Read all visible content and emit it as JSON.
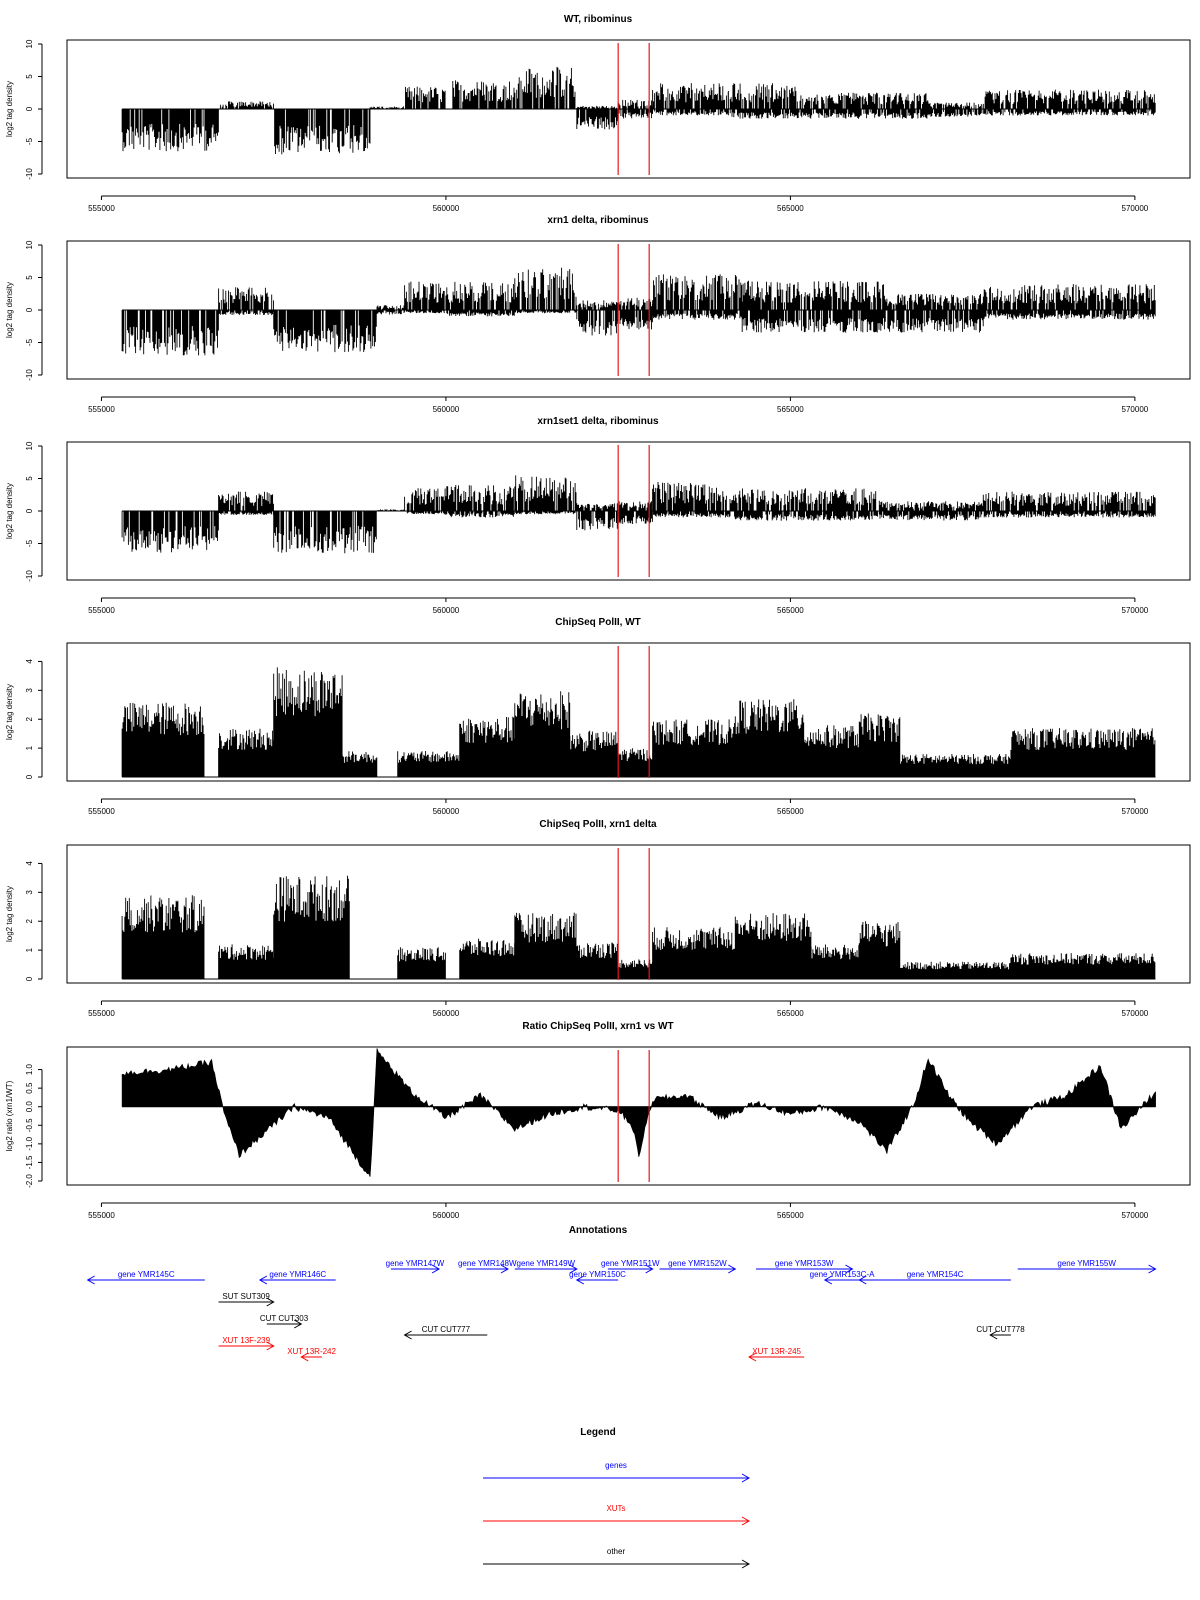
{
  "chart_data": [
    {
      "type": "bar",
      "title": "WT, ribominus",
      "ylabel": "log2 tag density",
      "xlim": [
        554500,
        570800
      ],
      "ylim": [
        -10,
        10
      ],
      "xticks": [
        "555000",
        "560000",
        "565000",
        "570000"
      ],
      "xtick_values": [
        555000,
        560000,
        565000,
        570000
      ],
      "yticks": [
        "-10",
        "-5",
        "0",
        "5",
        "10"
      ],
      "ytick_values": [
        -10,
        -5,
        0,
        5,
        10
      ],
      "marker_positions": [
        562500,
        562950
      ],
      "marker_color": "#e31a1c",
      "series": [
        {
          "x": [
            555300,
            556700
          ],
          "values": [
            -6.5,
            -6.5
          ]
        },
        {
          "x": [
            557500,
            558900
          ],
          "values": [
            -7.0,
            -7.0
          ]
        },
        {
          "x": [
            556800,
            557500
          ],
          "values": [
            0.5,
            0.5
          ]
        },
        {
          "x": [
            559400,
            560000
          ],
          "values": [
            3.5,
            3.5
          ]
        },
        {
          "x": [
            560100,
            561900
          ],
          "values": [
            5.0,
            5.0
          ]
        },
        {
          "x": [
            561900,
            562500
          ],
          "values": [
            -3.0,
            -3.0
          ]
        },
        {
          "x": [
            562950,
            567000
          ],
          "values": [
            3.5,
            3.5
          ]
        },
        {
          "x": [
            563000,
            567000
          ],
          "values": [
            -1.5,
            -1.5
          ]
        },
        {
          "x": [
            567500,
            570300
          ],
          "values": [
            2.5,
            2.5
          ]
        }
      ]
    },
    {
      "type": "bar",
      "title": "xrn1 delta, ribominus",
      "ylabel": "log2 tag density",
      "xlim": [
        554500,
        570800
      ],
      "ylim": [
        -10,
        10
      ],
      "xticks": [
        "555000",
        "560000",
        "565000",
        "570000"
      ],
      "xtick_values": [
        555000,
        560000,
        565000,
        570000
      ],
      "yticks": [
        "-10",
        "-5",
        "0",
        "5",
        "10"
      ],
      "ytick_values": [
        -10,
        -5,
        0,
        5,
        10
      ],
      "marker_positions": [
        562500,
        562950
      ]
    },
    {
      "type": "bar",
      "title": "xrn1set1 delta, ribominus",
      "ylabel": "log2 tag density",
      "xlim": [
        554500,
        570800
      ],
      "ylim": [
        -10,
        10
      ],
      "xticks": [
        "555000",
        "560000",
        "565000",
        "570000"
      ],
      "xtick_values": [
        555000,
        560000,
        565000,
        570000
      ],
      "yticks": [
        "-10",
        "-5",
        "0",
        "5",
        "10"
      ],
      "ytick_values": [
        -10,
        -5,
        0,
        5,
        10
      ],
      "marker_positions": [
        562500,
        562950
      ]
    },
    {
      "type": "bar",
      "title": "ChipSeq PolII, WT",
      "ylabel": "log2 tag density",
      "xlim": [
        554500,
        570800
      ],
      "ylim": [
        0,
        4.5
      ],
      "xticks": [
        "555000",
        "560000",
        "565000",
        "570000"
      ],
      "xtick_values": [
        555000,
        560000,
        565000,
        570000
      ],
      "yticks": [
        "0",
        "1",
        "2",
        "3",
        "4"
      ],
      "ytick_values": [
        0,
        1,
        2,
        3,
        4
      ],
      "marker_positions": [
        562500,
        562950
      ]
    },
    {
      "type": "bar",
      "title": "ChipSeq PolII, xrn1 delta",
      "ylabel": "log2 tag density",
      "xlim": [
        554500,
        570800
      ],
      "ylim": [
        0,
        4.5
      ],
      "xticks": [
        "555000",
        "560000",
        "565000",
        "570000"
      ],
      "xtick_values": [
        555000,
        560000,
        565000,
        570000
      ],
      "yticks": [
        "0",
        "1",
        "2",
        "3",
        "4"
      ],
      "ytick_values": [
        0,
        1,
        2,
        3,
        4
      ],
      "marker_positions": [
        562500,
        562950
      ]
    },
    {
      "type": "area",
      "title": "Ratio ChipSeq PolII, xrn1 vs WT",
      "ylabel": "log2 ratio (xrn1/WT)",
      "xlim": [
        554500,
        570800
      ],
      "ylim": [
        -2,
        1.5
      ],
      "xticks": [
        "555000",
        "560000",
        "565000",
        "570000"
      ],
      "xtick_values": [
        555000,
        560000,
        565000,
        570000
      ],
      "yticks": [
        "-2.0",
        "-1.5",
        "-1.0",
        "-0.5",
        "0.0",
        "0.5",
        "1.0"
      ],
      "ytick_values": [
        -2,
        -1.5,
        -1,
        -0.5,
        0,
        0.5,
        1
      ],
      "marker_positions": [
        562500,
        562950
      ],
      "x": [
        555300,
        556000,
        556600,
        556800,
        557000,
        557800,
        558300,
        558900,
        559000,
        559500,
        560000,
        560500,
        561000,
        561500,
        562000,
        562500,
        562700,
        562800,
        563000,
        563500,
        564000,
        564500,
        565000,
        565500,
        566000,
        566400,
        566800,
        567000,
        567300,
        567600,
        568000,
        568500,
        569000,
        569500,
        569800,
        570300
      ],
      "values": [
        0.9,
        1.0,
        1.2,
        -0.3,
        -1.3,
        0.0,
        -0.3,
        -1.9,
        1.5,
        0.4,
        -0.3,
        0.3,
        -0.6,
        -0.2,
        0.0,
        -0.1,
        -0.5,
        -1.3,
        0.2,
        0.3,
        -0.3,
        0.1,
        -0.2,
        0.0,
        -0.4,
        -1.2,
        0.1,
        1.3,
        0.3,
        -0.4,
        -1.0,
        0.0,
        0.3,
        1.1,
        -0.6,
        0.4
      ]
    }
  ],
  "annotations": {
    "title": "Annotations",
    "colors": {
      "gene": "#0000ff",
      "xut": "#ff0000",
      "other": "#000000"
    },
    "features": [
      {
        "label": "gene YMR145C",
        "kind": "gene",
        "start": 554800,
        "end": 556500,
        "strand": "-"
      },
      {
        "label": "gene YMR146C",
        "kind": "gene",
        "start": 557300,
        "end": 558400,
        "strand": "-"
      },
      {
        "label": "gene YMR147W",
        "kind": "gene",
        "start": 559200,
        "end": 559900,
        "strand": "+"
      },
      {
        "label": "gene YMR148W",
        "kind": "gene",
        "start": 560300,
        "end": 560900,
        "strand": "+"
      },
      {
        "label": "gene YMR149W",
        "kind": "gene",
        "start": 561000,
        "end": 561900,
        "strand": "+"
      },
      {
        "label": "gene YMR150C",
        "kind": "gene",
        "start": 561900,
        "end": 562500,
        "strand": "-"
      },
      {
        "label": "gene YMR151W",
        "kind": "gene",
        "start": 562350,
        "end": 563000,
        "strand": "+"
      },
      {
        "label": "gene YMR152W",
        "kind": "gene",
        "start": 563100,
        "end": 564200,
        "strand": "+"
      },
      {
        "label": "gene YMR153W",
        "kind": "gene",
        "start": 564500,
        "end": 565900,
        "strand": "+"
      },
      {
        "label": "gene YMR153C-A",
        "kind": "gene",
        "start": 565500,
        "end": 566000,
        "strand": "-"
      },
      {
        "label": "gene YMR154C",
        "kind": "gene",
        "start": 566000,
        "end": 568200,
        "strand": "-"
      },
      {
        "label": "gene YMR155W",
        "kind": "gene",
        "start": 568300,
        "end": 570300,
        "strand": "+"
      },
      {
        "label": "SUT SUT309",
        "kind": "other",
        "start": 556700,
        "end": 557500,
        "strand": "+"
      },
      {
        "label": "CUT CUT303",
        "kind": "other",
        "start": 557400,
        "end": 557900,
        "strand": "+"
      },
      {
        "label": "CUT CUT777",
        "kind": "other",
        "start": 559400,
        "end": 560600,
        "strand": "-"
      },
      {
        "label": "CUT CUT778",
        "kind": "other",
        "start": 567900,
        "end": 568200,
        "strand": "-"
      },
      {
        "label": "XUT 13F-239",
        "kind": "xut",
        "start": 556700,
        "end": 557500,
        "strand": "+"
      },
      {
        "label": "XUT 13R-242",
        "kind": "xut",
        "start": 557900,
        "end": 558200,
        "strand": "-"
      },
      {
        "label": "XUT 13R-245",
        "kind": "xut",
        "start": 564400,
        "end": 565200,
        "strand": "-"
      }
    ]
  },
  "legend": {
    "title": "Legend",
    "items": [
      {
        "label": "genes",
        "color": "#0000ff"
      },
      {
        "label": "XUTs",
        "color": "#ff0000"
      },
      {
        "label": "other",
        "color": "#000000"
      }
    ]
  }
}
